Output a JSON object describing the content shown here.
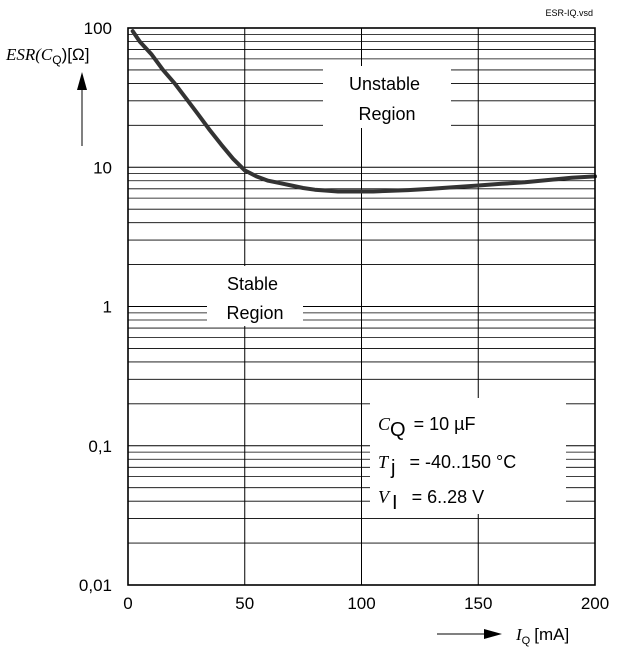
{
  "file_label": "ESR-IQ.vsd",
  "chart_data": {
    "type": "line",
    "x_axis": {
      "label_symbol": "I",
      "label_subscript": "Q",
      "label_unit": "[mA]",
      "range": [
        0,
        200
      ],
      "ticks": [
        0,
        50,
        100,
        150,
        200
      ],
      "tick_labels": [
        "0",
        "50",
        "100",
        "150",
        "200"
      ]
    },
    "y_axis": {
      "label_prefix": "ESR(C",
      "label_subscript": "Q",
      "label_suffix": ")[Ω]",
      "scale": "log",
      "range": [
        0.01,
        100
      ],
      "ticks": [
        0.01,
        0.1,
        1,
        10,
        100
      ],
      "tick_labels": [
        "0,01",
        "0,1",
        "1",
        "10",
        "100"
      ]
    },
    "grid": true,
    "series": [
      {
        "x": [
          2,
          5,
          10,
          15,
          20,
          25,
          30,
          35,
          40,
          45,
          50,
          55,
          60,
          65,
          70,
          75,
          80,
          85,
          90,
          95,
          100,
          105,
          110,
          120,
          130,
          140,
          150,
          160,
          170,
          180,
          190,
          200
        ],
        "y": [
          95,
          80,
          65,
          50,
          40,
          31,
          24,
          18.5,
          14.5,
          11.5,
          9.5,
          8.6,
          8.0,
          7.7,
          7.4,
          7.1,
          6.9,
          6.8,
          6.7,
          6.7,
          6.7,
          6.7,
          6.75,
          6.85,
          7.0,
          7.2,
          7.4,
          7.6,
          7.8,
          8.1,
          8.4,
          8.6
        ]
      }
    ],
    "annotations": {
      "unstable_line1": "Unstable",
      "unstable_line2": "Region",
      "stable_line1": "Stable",
      "stable_line2": "Region",
      "cond1_symbol": "C",
      "cond1_sub": "Q",
      "cond1_text": "= 10 µF",
      "cond2_symbol": "T",
      "cond2_sub": "j",
      "cond2_text": "= -40..150 °C",
      "cond3_symbol": "V",
      "cond3_sub": "I",
      "cond3_text": "= 6..28 V"
    }
  }
}
